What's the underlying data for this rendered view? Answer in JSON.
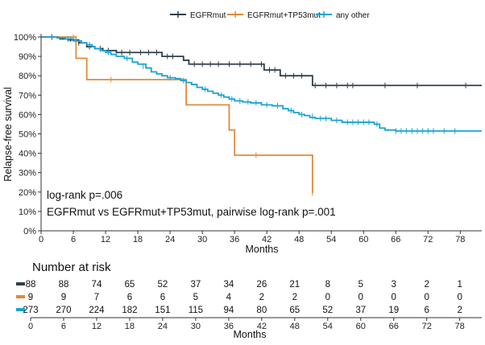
{
  "chart_data": {
    "type": "line",
    "subtype": "kaplan-meier step curves",
    "title": "",
    "legend": {
      "placement": "top-center",
      "entries": [
        "EGFRmut",
        "EGFRmut+TP53mut",
        "any other"
      ]
    },
    "xlabel": "Months",
    "ylabel": "Relapse-free survival",
    "xlim": [
      0,
      82
    ],
    "ylim": [
      0,
      100
    ],
    "x_ticks": [
      0,
      6,
      12,
      18,
      24,
      30,
      36,
      42,
      48,
      54,
      60,
      66,
      72,
      78
    ],
    "y_ticks": [
      0,
      10,
      20,
      30,
      40,
      50,
      60,
      70,
      80,
      90,
      100
    ],
    "y_tick_labels": [
      "0%",
      "10%",
      "20%",
      "30%",
      "40%",
      "50%",
      "60%",
      "70%",
      "80%",
      "90%",
      "100%"
    ],
    "grid": false,
    "annotations": [
      "log-rank p=.006",
      "EGFRmut vs EGFRmut+TP53mut, pairwise log-rank p=.001"
    ],
    "series": [
      {
        "name": "EGFRmut",
        "color": "#2e3f4c",
        "steps": [
          [
            0,
            100
          ],
          [
            3.5,
            99
          ],
          [
            5,
            98.5
          ],
          [
            7,
            97
          ],
          [
            8.5,
            95
          ],
          [
            10,
            94
          ],
          [
            11.5,
            93
          ],
          [
            14,
            92
          ],
          [
            22.5,
            90
          ],
          [
            26.5,
            88
          ],
          [
            27.5,
            86
          ],
          [
            41.5,
            83
          ],
          [
            44.5,
            80
          ],
          [
            50.5,
            75
          ],
          [
            82,
            75
          ]
        ],
        "censors": [
          [
            2,
            100
          ],
          [
            5.5,
            99
          ],
          [
            7,
            97
          ],
          [
            9,
            95
          ],
          [
            11,
            94
          ],
          [
            12.5,
            93
          ],
          [
            15,
            92
          ],
          [
            16.5,
            92
          ],
          [
            18.5,
            92
          ],
          [
            20,
            92
          ],
          [
            21.5,
            92
          ],
          [
            23.5,
            90
          ],
          [
            24.5,
            90
          ],
          [
            28.5,
            86
          ],
          [
            30,
            86
          ],
          [
            31.5,
            86
          ],
          [
            33,
            86
          ],
          [
            35,
            86
          ],
          [
            37,
            86
          ],
          [
            39,
            86
          ],
          [
            41,
            86
          ],
          [
            42.5,
            83
          ],
          [
            43.5,
            83
          ],
          [
            45.5,
            80
          ],
          [
            47,
            80
          ],
          [
            48.5,
            80
          ],
          [
            51,
            75
          ],
          [
            53,
            75
          ],
          [
            55,
            75
          ],
          [
            57,
            75
          ],
          [
            58,
            75
          ],
          [
            64,
            75
          ],
          [
            70,
            75
          ],
          [
            79,
            75
          ]
        ]
      },
      {
        "name": "EGFRmut+TP53mut",
        "color": "#e08a3c",
        "steps": [
          [
            0,
            100
          ],
          [
            6.5,
            89
          ],
          [
            8.5,
            78
          ],
          [
            27,
            65
          ],
          [
            35,
            52
          ],
          [
            36,
            39
          ],
          [
            50.5,
            19.5
          ]
        ],
        "censors": [
          [
            6,
            100
          ],
          [
            13,
            78
          ],
          [
            40,
            39
          ],
          [
            50.5,
            19.5
          ]
        ]
      },
      {
        "name": "any other",
        "color": "#1aa3d1",
        "steps": [
          [
            0,
            100
          ],
          [
            3,
            99.5
          ],
          [
            4.5,
            99
          ],
          [
            6,
            98
          ],
          [
            7.5,
            97
          ],
          [
            8.5,
            96
          ],
          [
            9.5,
            95
          ],
          [
            10,
            94
          ],
          [
            11,
            93
          ],
          [
            12,
            92
          ],
          [
            13,
            91
          ],
          [
            14,
            90
          ],
          [
            15.5,
            89
          ],
          [
            17,
            87
          ],
          [
            18,
            86
          ],
          [
            19.5,
            84
          ],
          [
            20.5,
            82
          ],
          [
            21.5,
            81
          ],
          [
            22.5,
            80
          ],
          [
            23.5,
            79
          ],
          [
            25,
            78.5
          ],
          [
            26,
            77.5
          ],
          [
            27,
            76.5
          ],
          [
            28,
            75.5
          ],
          [
            29,
            74
          ],
          [
            30,
            73
          ],
          [
            31,
            72
          ],
          [
            32,
            71
          ],
          [
            33,
            70
          ],
          [
            34,
            69
          ],
          [
            35,
            68
          ],
          [
            36,
            67
          ],
          [
            37.5,
            66.5
          ],
          [
            39,
            66
          ],
          [
            41,
            65
          ],
          [
            43,
            64.5
          ],
          [
            45,
            63
          ],
          [
            46,
            62
          ],
          [
            47,
            61
          ],
          [
            48,
            60
          ],
          [
            49,
            59.5
          ],
          [
            50,
            58.5
          ],
          [
            51,
            58
          ],
          [
            54,
            57
          ],
          [
            56,
            56
          ],
          [
            62,
            55
          ],
          [
            63,
            53
          ],
          [
            64,
            52
          ],
          [
            66,
            51.5
          ],
          [
            82,
            51.5
          ]
        ],
        "censors": [
          [
            5,
            99
          ],
          [
            9,
            96
          ],
          [
            12.5,
            92
          ],
          [
            16,
            89
          ],
          [
            19,
            85
          ],
          [
            24,
            79
          ],
          [
            26.5,
            77.5
          ],
          [
            30.5,
            73
          ],
          [
            33.5,
            70
          ],
          [
            35.5,
            68
          ],
          [
            37,
            67
          ],
          [
            38.5,
            66.5
          ],
          [
            40,
            66
          ],
          [
            42,
            65
          ],
          [
            44,
            64.5
          ],
          [
            46.5,
            62
          ],
          [
            48.5,
            60
          ],
          [
            50.5,
            59
          ],
          [
            52,
            58
          ],
          [
            53,
            58
          ],
          [
            55,
            57
          ],
          [
            57,
            56
          ],
          [
            58,
            56
          ],
          [
            59,
            56
          ],
          [
            60,
            56
          ],
          [
            61,
            56
          ],
          [
            62.5,
            55
          ],
          [
            66,
            51.5
          ],
          [
            67,
            51.5
          ],
          [
            68,
            51.5
          ],
          [
            69,
            51.5
          ],
          [
            70,
            51.5
          ],
          [
            71,
            51.5
          ],
          [
            72,
            51.5
          ],
          [
            73,
            51.5
          ],
          [
            75,
            51.5
          ],
          [
            77,
            51.5
          ]
        ]
      }
    ],
    "risk_table": {
      "title": "Number at risk",
      "xlabel": "Months",
      "x_ticks": [
        0,
        6,
        12,
        18,
        24,
        30,
        36,
        42,
        48,
        54,
        60,
        66,
        72,
        78
      ],
      "rows": [
        {
          "color": "#2e3f4c",
          "values": [
            "88",
            "88",
            "74",
            "65",
            "52",
            "37",
            "34",
            "26",
            "21",
            "8",
            "5",
            "3",
            "2",
            "1"
          ]
        },
        {
          "color": "#e08a3c",
          "values": [
            "9",
            "9",
            "7",
            "6",
            "6",
            "5",
            "4",
            "2",
            "2",
            "0",
            "0",
            "0",
            "0",
            "0"
          ]
        },
        {
          "color": "#1aa3d1",
          "values": [
            "273",
            "270",
            "224",
            "182",
            "151",
            "115",
            "94",
            "80",
            "65",
            "52",
            "37",
            "19",
            "6",
            "2"
          ]
        }
      ]
    }
  }
}
